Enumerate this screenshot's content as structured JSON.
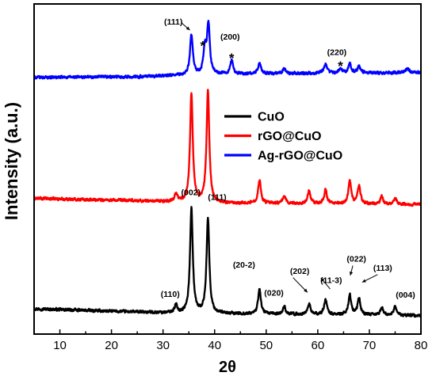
{
  "chart_data": {
    "type": "line",
    "title": "",
    "xlabel": "2θ",
    "ylabel": "Intensity (a.u.)",
    "xlim": [
      5,
      80
    ],
    "xticks": [
      10,
      20,
      30,
      40,
      50,
      60,
      70,
      80
    ],
    "y_ticks_shown": false,
    "grid": false,
    "legend": {
      "placement": "right-middle",
      "entries": [
        {
          "name": "CuO",
          "color": "#000000"
        },
        {
          "name": "rGO@CuO",
          "color": "#ff0000"
        },
        {
          "name": "Ag-rGO@CuO",
          "color": "#0000ff"
        }
      ]
    },
    "series": [
      {
        "name": "CuO",
        "color": "#000000",
        "baseline": 0.0,
        "noise": 0.6,
        "background": [
          [
            5,
            2.2
          ],
          [
            20,
            1.4
          ],
          [
            35,
            0.7
          ],
          [
            80,
            0.0
          ]
        ],
        "peaks": [
          [
            32.5,
            2.5
          ],
          [
            35.5,
            34
          ],
          [
            38.7,
            31
          ],
          [
            48.7,
            8
          ],
          [
            53.5,
            2.5
          ],
          [
            58.3,
            3.5
          ],
          [
            61.5,
            5
          ],
          [
            66.2,
            6.5
          ],
          [
            68.0,
            5.5
          ],
          [
            72.4,
            2.5
          ],
          [
            75.0,
            3
          ]
        ]
      },
      {
        "name": "rGO@CuO",
        "color": "#ff0000",
        "baseline": 36.0,
        "noise": 0.6,
        "background": [
          [
            5,
            2.0
          ],
          [
            25,
            1.2
          ],
          [
            40,
            0.5
          ],
          [
            80,
            0.0
          ]
        ],
        "peaks": [
          [
            32.5,
            2.5
          ],
          [
            35.5,
            35
          ],
          [
            38.7,
            36
          ],
          [
            48.7,
            7.5
          ],
          [
            53.5,
            2.5
          ],
          [
            58.3,
            4
          ],
          [
            61.5,
            4.5
          ],
          [
            66.2,
            7.5
          ],
          [
            68.0,
            6
          ],
          [
            72.4,
            2.5
          ],
          [
            75.0,
            2
          ]
        ]
      },
      {
        "name": "Ag-rGO@CuO",
        "color": "#0000ff",
        "baseline": 76.0,
        "noise": 0.6,
        "background": [
          [
            5,
            1.2
          ],
          [
            25,
            1.4
          ],
          [
            40,
            2.2
          ],
          [
            60,
            2.6
          ],
          [
            80,
            2.8
          ]
        ],
        "peaks": [
          [
            35.5,
            13
          ],
          [
            38.1,
            8
          ],
          [
            38.8,
            16
          ],
          [
            43.3,
            4.5
          ],
          [
            48.7,
            3.5
          ],
          [
            53.5,
            1.5
          ],
          [
            61.5,
            3
          ],
          [
            64.4,
            1.5
          ],
          [
            66.2,
            3
          ],
          [
            68.0,
            2
          ],
          [
            77.4,
            1.5
          ]
        ]
      }
    ],
    "annotations": {
      "black": [
        {
          "text": "(110)",
          "x": 31.4,
          "y": 6.0
        },
        {
          "text": "(002)",
          "x": 35.4,
          "y": 39.0
        },
        {
          "text": "(111)",
          "x": 40.5,
          "y": 37.5
        },
        {
          "text": "(20-2)",
          "x": 45.7,
          "y": 15.5
        },
        {
          "text": "(020)",
          "x": 51.5,
          "y": 6.5
        },
        {
          "text": "(202)",
          "x": 56.5,
          "y": 13.5
        },
        {
          "text": "(11-3)",
          "x": 62.6,
          "y": 10.5
        },
        {
          "text": "(022)",
          "x": 67.5,
          "y": 17.5
        },
        {
          "text": "(113)",
          "x": 72.6,
          "y": 14.5
        },
        {
          "text": "(004)",
          "x": 77.0,
          "y": 5.8
        }
      ],
      "blue": [
        {
          "text": "(111)",
          "x": 32.0,
          "y": 94.3
        },
        {
          "text": "(200)",
          "x": 43.0,
          "y": 89.5
        },
        {
          "text": "(220)",
          "x": 63.7,
          "y": 84.5
        }
      ]
    },
    "stars": [
      {
        "text": "*",
        "x": 37.7,
        "y": 86.0
      },
      {
        "text": "*",
        "x": 43.3,
        "y": 82.0
      },
      {
        "text": "*",
        "x": 64.4,
        "y": 79.5
      }
    ]
  }
}
